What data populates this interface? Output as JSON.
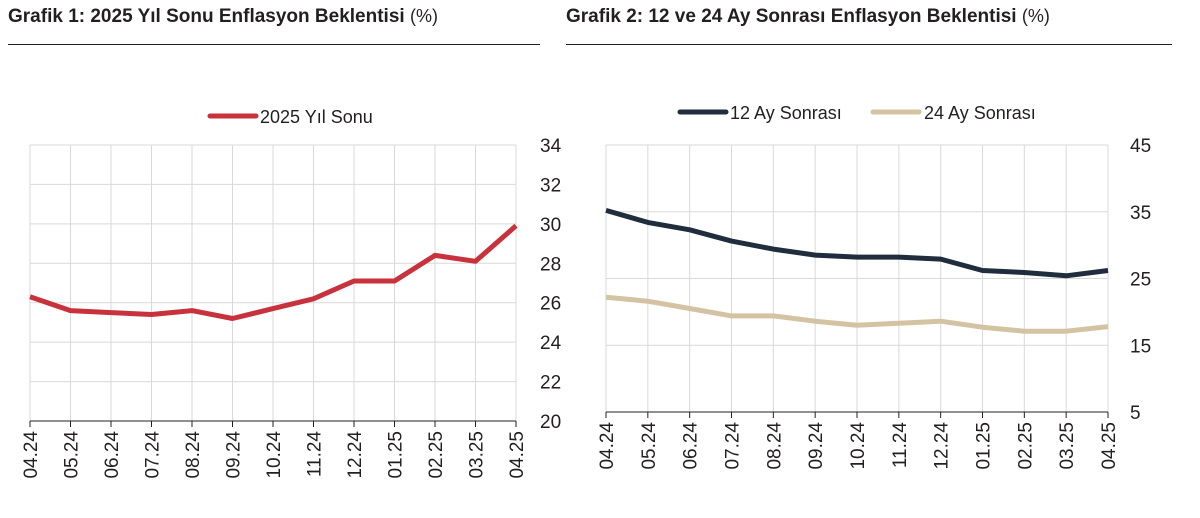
{
  "chart_data": [
    {
      "type": "line",
      "title": "Grafik 1: 2025 Yıl Sonu Enflasyon Beklentisi",
      "unit": "(%)",
      "categories": [
        "04.24",
        "05.24",
        "06.24",
        "07.24",
        "08.24",
        "09.24",
        "10.24",
        "11.24",
        "12.24",
        "01.25",
        "02.25",
        "03.25",
        "04.25"
      ],
      "y_axis": "right",
      "ylim": [
        20,
        34
      ],
      "yticks": [
        "20",
        "22",
        "24",
        "26",
        "28",
        "30",
        "32",
        "34"
      ],
      "grid": true,
      "legend_position": "top",
      "series": [
        {
          "name": "2025 Yıl Sonu",
          "color": "#c8323c",
          "values": [
            26.3,
            25.6,
            25.5,
            25.4,
            25.6,
            25.2,
            25.7,
            26.2,
            27.1,
            27.1,
            28.4,
            28.1,
            29.9
          ]
        }
      ]
    },
    {
      "type": "line",
      "title": "Grafik 2: 12 ve 24 Ay Sonrası Enflasyon Beklentisi",
      "unit": "(%)",
      "categories": [
        "04.24",
        "05.24",
        "06.24",
        "07.24",
        "08.24",
        "09.24",
        "10.24",
        "11.24",
        "12.24",
        "01.25",
        "02.25",
        "03.25",
        "04.25"
      ],
      "y_axis": "right",
      "ylim": [
        5,
        45
      ],
      "yticks": [
        "5",
        "15",
        "25",
        "35",
        "45"
      ],
      "grid": true,
      "legend_position": "top",
      "series": [
        {
          "name": "12 Ay Sonrası",
          "color": "#1f2d3d",
          "values": [
            35.2,
            33.4,
            32.3,
            30.6,
            29.4,
            28.5,
            28.2,
            28.2,
            27.9,
            26.2,
            25.9,
            25.4,
            26.2
          ]
        },
        {
          "name": "24 Ay Sonrası",
          "color": "#d4c3a2",
          "values": [
            22.2,
            21.6,
            20.5,
            19.4,
            19.4,
            18.6,
            18.0,
            18.3,
            18.6,
            17.7,
            17.1,
            17.1,
            17.8
          ]
        }
      ]
    }
  ]
}
